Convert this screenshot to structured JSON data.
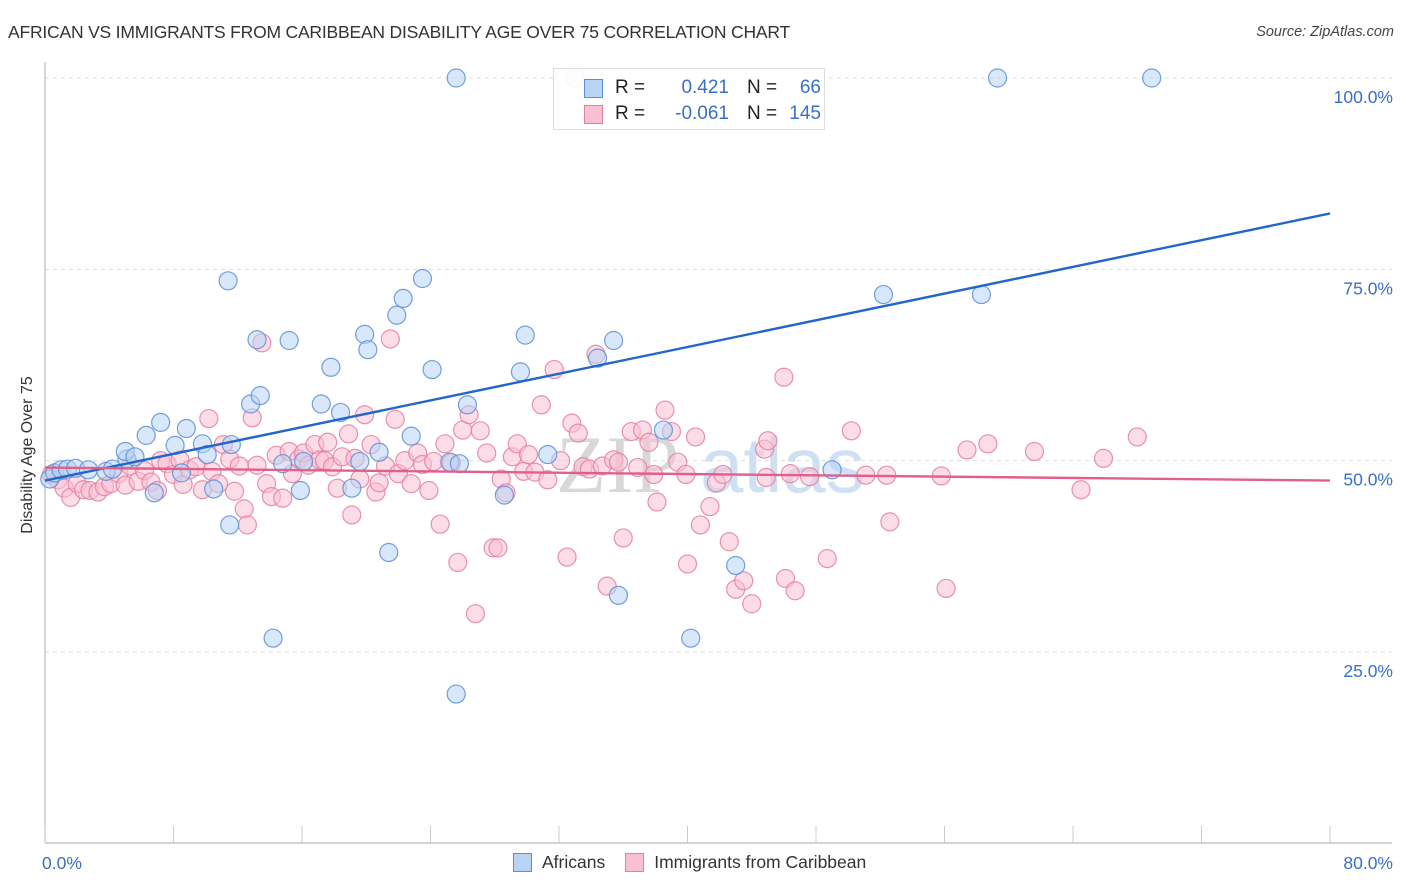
{
  "header": {
    "title": "AFRICAN VS IMMIGRANTS FROM CARIBBEAN DISABILITY AGE OVER 75 CORRELATION CHART",
    "source": "Source: ZipAtlas.com"
  },
  "watermark": {
    "zip": "ZIP",
    "atlas": "atlas"
  },
  "colors": {
    "africans_fill": "#b8d3f4",
    "africans_stroke": "#5b8fd6",
    "africans_line": "#2266cc",
    "caribbean_fill": "#f9c0d2",
    "caribbean_stroke": "#e57fa0",
    "caribbean_line": "#e0608a",
    "tick_label": "#3a6fc8",
    "grid": "#dddddd"
  },
  "legend": {
    "rows": [
      {
        "r_label": "R =",
        "r_value": "0.421",
        "n_label": "N =",
        "n_value": "66"
      },
      {
        "r_label": "R =",
        "r_value": "-0.061",
        "n_label": "N =",
        "n_value": "145"
      }
    ]
  },
  "chart_data": {
    "type": "scatter",
    "title": "AFRICAN VS IMMIGRANTS FROM CARIBBEAN DISABILITY AGE OVER 75 CORRELATION CHART",
    "xlabel": "",
    "ylabel": "Disability Age Over 75",
    "xlim": [
      0,
      80
    ],
    "ylim": [
      0,
      100
    ],
    "x_tick_labels": [
      "0.0%",
      "80.0%"
    ],
    "x_ticks": [
      0,
      8,
      16,
      24,
      32,
      40,
      48,
      56,
      64,
      72,
      80
    ],
    "y_tick_labels": [
      "100.0%",
      "75.0%",
      "50.0%",
      "25.0%"
    ],
    "y_ticks": [
      100,
      75,
      50,
      25
    ],
    "grid": "horizontal-dashed",
    "legend_placement": "top-center",
    "series": [
      {
        "name": "Africans",
        "r": 0.421,
        "n": 66,
        "trend": {
          "x": [
            0,
            80
          ],
          "y": [
            47.4,
            82.3
          ]
        },
        "points": [
          [
            0.3,
            47.6
          ],
          [
            0.6,
            48.4
          ],
          [
            1.0,
            48.8
          ],
          [
            1.4,
            48.9
          ],
          [
            1.9,
            49.0
          ],
          [
            2.7,
            48.8
          ],
          [
            3.8,
            48.6
          ],
          [
            4.2,
            48.9
          ],
          [
            5.1,
            50.2
          ],
          [
            5.0,
            51.2
          ],
          [
            5.6,
            50.5
          ],
          [
            6.3,
            53.3
          ],
          [
            7.2,
            55.0
          ],
          [
            6.8,
            45.8
          ],
          [
            8.1,
            52.0
          ],
          [
            8.8,
            54.2
          ],
          [
            9.8,
            52.2
          ],
          [
            8.5,
            48.4
          ],
          [
            10.1,
            50.8
          ],
          [
            10.5,
            46.3
          ],
          [
            11.6,
            52.1
          ],
          [
            11.5,
            41.6
          ],
          [
            11.4,
            73.5
          ],
          [
            12.8,
            57.4
          ],
          [
            13.4,
            58.5
          ],
          [
            13.2,
            65.8
          ],
          [
            14.2,
            26.8
          ],
          [
            15.2,
            65.7
          ],
          [
            14.8,
            49.6
          ],
          [
            15.9,
            46.1
          ],
          [
            16.1,
            49.9
          ],
          [
            17.2,
            57.4
          ],
          [
            17.8,
            62.2
          ],
          [
            18.4,
            56.3
          ],
          [
            19.1,
            46.4
          ],
          [
            19.6,
            49.9
          ],
          [
            19.9,
            66.5
          ],
          [
            20.1,
            64.5
          ],
          [
            20.8,
            51.1
          ],
          [
            21.4,
            38.0
          ],
          [
            21.9,
            69.0
          ],
          [
            22.3,
            71.2
          ],
          [
            22.8,
            53.2
          ],
          [
            23.5,
            73.8
          ],
          [
            24.1,
            61.9
          ],
          [
            25.2,
            49.8
          ],
          [
            25.8,
            49.6
          ],
          [
            25.6,
            19.5
          ],
          [
            25.6,
            100.0
          ],
          [
            26.3,
            57.3
          ],
          [
            28.6,
            45.5
          ],
          [
            29.6,
            61.6
          ],
          [
            29.9,
            66.4
          ],
          [
            31.3,
            50.8
          ],
          [
            33.0,
            100.0
          ],
          [
            34.4,
            63.4
          ],
          [
            35.4,
            65.7
          ],
          [
            35.7,
            32.4
          ],
          [
            38.5,
            54.0
          ],
          [
            40.2,
            26.8
          ],
          [
            43.0,
            36.3
          ],
          [
            49.0,
            48.8
          ],
          [
            52.2,
            71.7
          ],
          [
            59.3,
            100.0
          ],
          [
            58.3,
            71.7
          ],
          [
            68.9,
            100.0
          ]
        ]
      },
      {
        "name": "Immigrants from Caribbean",
        "r": -0.061,
        "n": 145,
        "trend": {
          "x": [
            0,
            80
          ],
          "y": [
            49.1,
            47.4
          ]
        },
        "points": [
          [
            0.4,
            48.2
          ],
          [
            0.8,
            47.5
          ],
          [
            1.2,
            46.4
          ],
          [
            1.6,
            45.2
          ],
          [
            2.0,
            47.0
          ],
          [
            2.4,
            46.2
          ],
          [
            2.8,
            46.1
          ],
          [
            3.3,
            45.9
          ],
          [
            3.7,
            46.6
          ],
          [
            4.1,
            47.0
          ],
          [
            4.6,
            48.3
          ],
          [
            5.0,
            46.8
          ],
          [
            5.3,
            49.3
          ],
          [
            5.8,
            47.3
          ],
          [
            6.2,
            48.7
          ],
          [
            6.6,
            47.2
          ],
          [
            7.0,
            46.1
          ],
          [
            7.2,
            50.0
          ],
          [
            7.6,
            49.6
          ],
          [
            8.0,
            48.2
          ],
          [
            8.4,
            50.1
          ],
          [
            8.6,
            46.9
          ],
          [
            9.0,
            48.8
          ],
          [
            9.4,
            49.2
          ],
          [
            9.8,
            46.2
          ],
          [
            10.2,
            55.5
          ],
          [
            10.4,
            48.6
          ],
          [
            10.8,
            47.0
          ],
          [
            11.1,
            52.1
          ],
          [
            11.5,
            50.2
          ],
          [
            11.8,
            46.0
          ],
          [
            12.1,
            49.3
          ],
          [
            12.4,
            43.7
          ],
          [
            12.6,
            41.6
          ],
          [
            12.9,
            55.6
          ],
          [
            13.2,
            49.4
          ],
          [
            13.5,
            65.4
          ],
          [
            13.8,
            47.0
          ],
          [
            14.1,
            45.3
          ],
          [
            14.4,
            50.7
          ],
          [
            14.8,
            45.1
          ],
          [
            15.2,
            51.2
          ],
          [
            15.4,
            48.3
          ],
          [
            15.8,
            50.2
          ],
          [
            16.1,
            51.0
          ],
          [
            16.4,
            49.4
          ],
          [
            16.8,
            52.1
          ],
          [
            17.1,
            50.1
          ],
          [
            17.4,
            50.0
          ],
          [
            17.6,
            52.4
          ],
          [
            17.9,
            49.2
          ],
          [
            18.2,
            46.4
          ],
          [
            18.5,
            50.5
          ],
          [
            18.9,
            53.5
          ],
          [
            19.1,
            42.9
          ],
          [
            19.3,
            50.3
          ],
          [
            19.6,
            47.6
          ],
          [
            19.9,
            56.0
          ],
          [
            20.3,
            52.1
          ],
          [
            20.6,
            45.9
          ],
          [
            20.8,
            47.1
          ],
          [
            21.2,
            49.3
          ],
          [
            21.5,
            65.9
          ],
          [
            21.8,
            55.4
          ],
          [
            22.0,
            48.3
          ],
          [
            22.4,
            50.0
          ],
          [
            22.8,
            47.0
          ],
          [
            23.2,
            51.0
          ],
          [
            23.5,
            49.5
          ],
          [
            23.9,
            46.1
          ],
          [
            24.2,
            49.9
          ],
          [
            24.6,
            41.7
          ],
          [
            24.9,
            52.2
          ],
          [
            25.3,
            49.7
          ],
          [
            25.7,
            36.7
          ],
          [
            26.0,
            54.0
          ],
          [
            26.4,
            56.0
          ],
          [
            26.8,
            30.0
          ],
          [
            27.1,
            53.9
          ],
          [
            27.5,
            51.0
          ],
          [
            27.9,
            38.6
          ],
          [
            28.2,
            38.6
          ],
          [
            28.4,
            47.6
          ],
          [
            28.7,
            45.8
          ],
          [
            29.1,
            50.5
          ],
          [
            29.4,
            52.2
          ],
          [
            29.8,
            48.6
          ],
          [
            30.1,
            50.8
          ],
          [
            30.5,
            48.5
          ],
          [
            30.9,
            57.3
          ],
          [
            31.3,
            47.5
          ],
          [
            31.7,
            61.9
          ],
          [
            32.1,
            50.0
          ],
          [
            32.5,
            37.4
          ],
          [
            32.8,
            54.9
          ],
          [
            33.2,
            53.6
          ],
          [
            33.5,
            49.2
          ],
          [
            33.9,
            48.9
          ],
          [
            34.3,
            63.9
          ],
          [
            34.7,
            49.3
          ],
          [
            35.0,
            33.6
          ],
          [
            35.4,
            50.1
          ],
          [
            35.7,
            49.8
          ],
          [
            36.0,
            39.9
          ],
          [
            36.5,
            53.8
          ],
          [
            36.9,
            49.1
          ],
          [
            37.2,
            54.0
          ],
          [
            37.6,
            52.4
          ],
          [
            37.9,
            48.2
          ],
          [
            38.1,
            44.6
          ],
          [
            38.6,
            56.6
          ],
          [
            39.0,
            53.8
          ],
          [
            39.4,
            49.8
          ],
          [
            39.9,
            48.2
          ],
          [
            40.0,
            36.5
          ],
          [
            40.5,
            53.1
          ],
          [
            40.8,
            41.6
          ],
          [
            41.4,
            44.0
          ],
          [
            41.8,
            47.1
          ],
          [
            42.2,
            48.2
          ],
          [
            42.6,
            39.4
          ],
          [
            43.0,
            33.2
          ],
          [
            43.5,
            34.3
          ],
          [
            44.0,
            31.3
          ],
          [
            44.8,
            51.5
          ],
          [
            45.0,
            52.6
          ],
          [
            46.0,
            60.9
          ],
          [
            46.1,
            34.6
          ],
          [
            46.4,
            48.3
          ],
          [
            46.7,
            33.0
          ],
          [
            47.6,
            47.9
          ],
          [
            48.7,
            37.2
          ],
          [
            50.2,
            53.9
          ],
          [
            51.1,
            48.1
          ],
          [
            52.4,
            48.1
          ],
          [
            52.6,
            42.0
          ],
          [
            55.8,
            48.0
          ],
          [
            56.1,
            33.3
          ],
          [
            57.4,
            51.4
          ],
          [
            58.7,
            52.2
          ],
          [
            61.6,
            51.2
          ],
          [
            64.5,
            46.2
          ],
          [
            65.9,
            50.3
          ],
          [
            68.0,
            53.1
          ],
          [
            44.9,
            47.8
          ]
        ]
      }
    ]
  },
  "bottom_legend": {
    "items": [
      {
        "label": "Africans"
      },
      {
        "label": "Immigrants from Caribbean"
      }
    ]
  }
}
